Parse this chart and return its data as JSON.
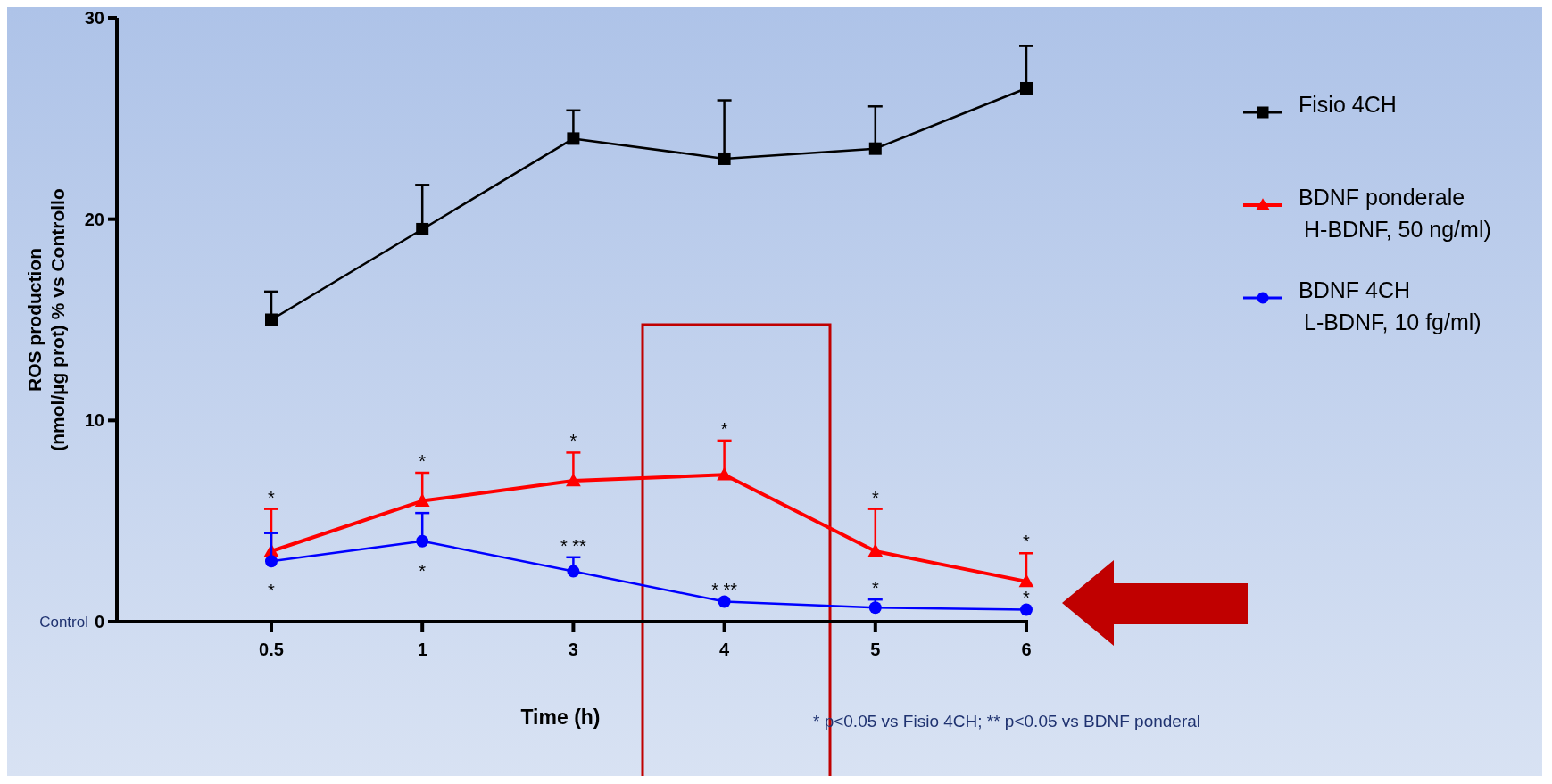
{
  "chart_data": {
    "type": "line",
    "xlabel": "Time (h)",
    "ylabel": "ROS production\n(nmol/µg prot) % vs Controllo",
    "categories": [
      "0.5",
      "1",
      "3",
      "4",
      "5",
      "6"
    ],
    "ylim": [
      0,
      30
    ],
    "yticks": [
      0,
      10,
      20,
      30
    ],
    "legend": "right",
    "grid": false,
    "series": [
      {
        "name": "Fisio 4CH",
        "color": "#000000",
        "marker": "square",
        "values": [
          15,
          19.5,
          24,
          23,
          23.5,
          26.5
        ],
        "errors": [
          [
            15,
            16.4
          ],
          [
            19.5,
            21.7
          ],
          [
            24,
            25.4
          ],
          [
            23,
            25.9
          ],
          [
            23.5,
            25.6
          ],
          [
            26.5,
            28.6
          ]
        ]
      },
      {
        "name": "BDNF ponderale\nH-BDNF, 50 ng/ml)",
        "color": "#ff0000",
        "marker": "triangle",
        "values": [
          3.5,
          6,
          7,
          7.3,
          3.5,
          2
        ],
        "errors": [
          [
            3.5,
            5.6
          ],
          [
            6,
            7.4
          ],
          [
            7,
            8.4
          ],
          [
            7.3,
            9
          ],
          [
            3.5,
            5.6
          ],
          [
            2,
            3.4
          ]
        ],
        "value_labels": [
          "*",
          "*",
          "*",
          "*",
          "*",
          "*"
        ]
      },
      {
        "name": "BDNF 4CH\nL-BDNF, 10 fg/ml)",
        "color": "#0000ff",
        "marker": "circle",
        "values": [
          3,
          4,
          2.5,
          1,
          0.7,
          0.6
        ],
        "errors": [
          [
            3,
            4.4
          ],
          [
            4,
            5.4
          ],
          [
            2.5,
            3.2
          ],
          null,
          [
            0.7,
            1.1
          ],
          null
        ],
        "value_labels": [
          "*",
          "*",
          "* **",
          "* **",
          "*",
          "*"
        ]
      }
    ],
    "annotations": [
      "Control",
      "* p<0.05 vs Fisio 4CH; ** p<0.05 vs BDNF ponderal"
    ]
  }
}
